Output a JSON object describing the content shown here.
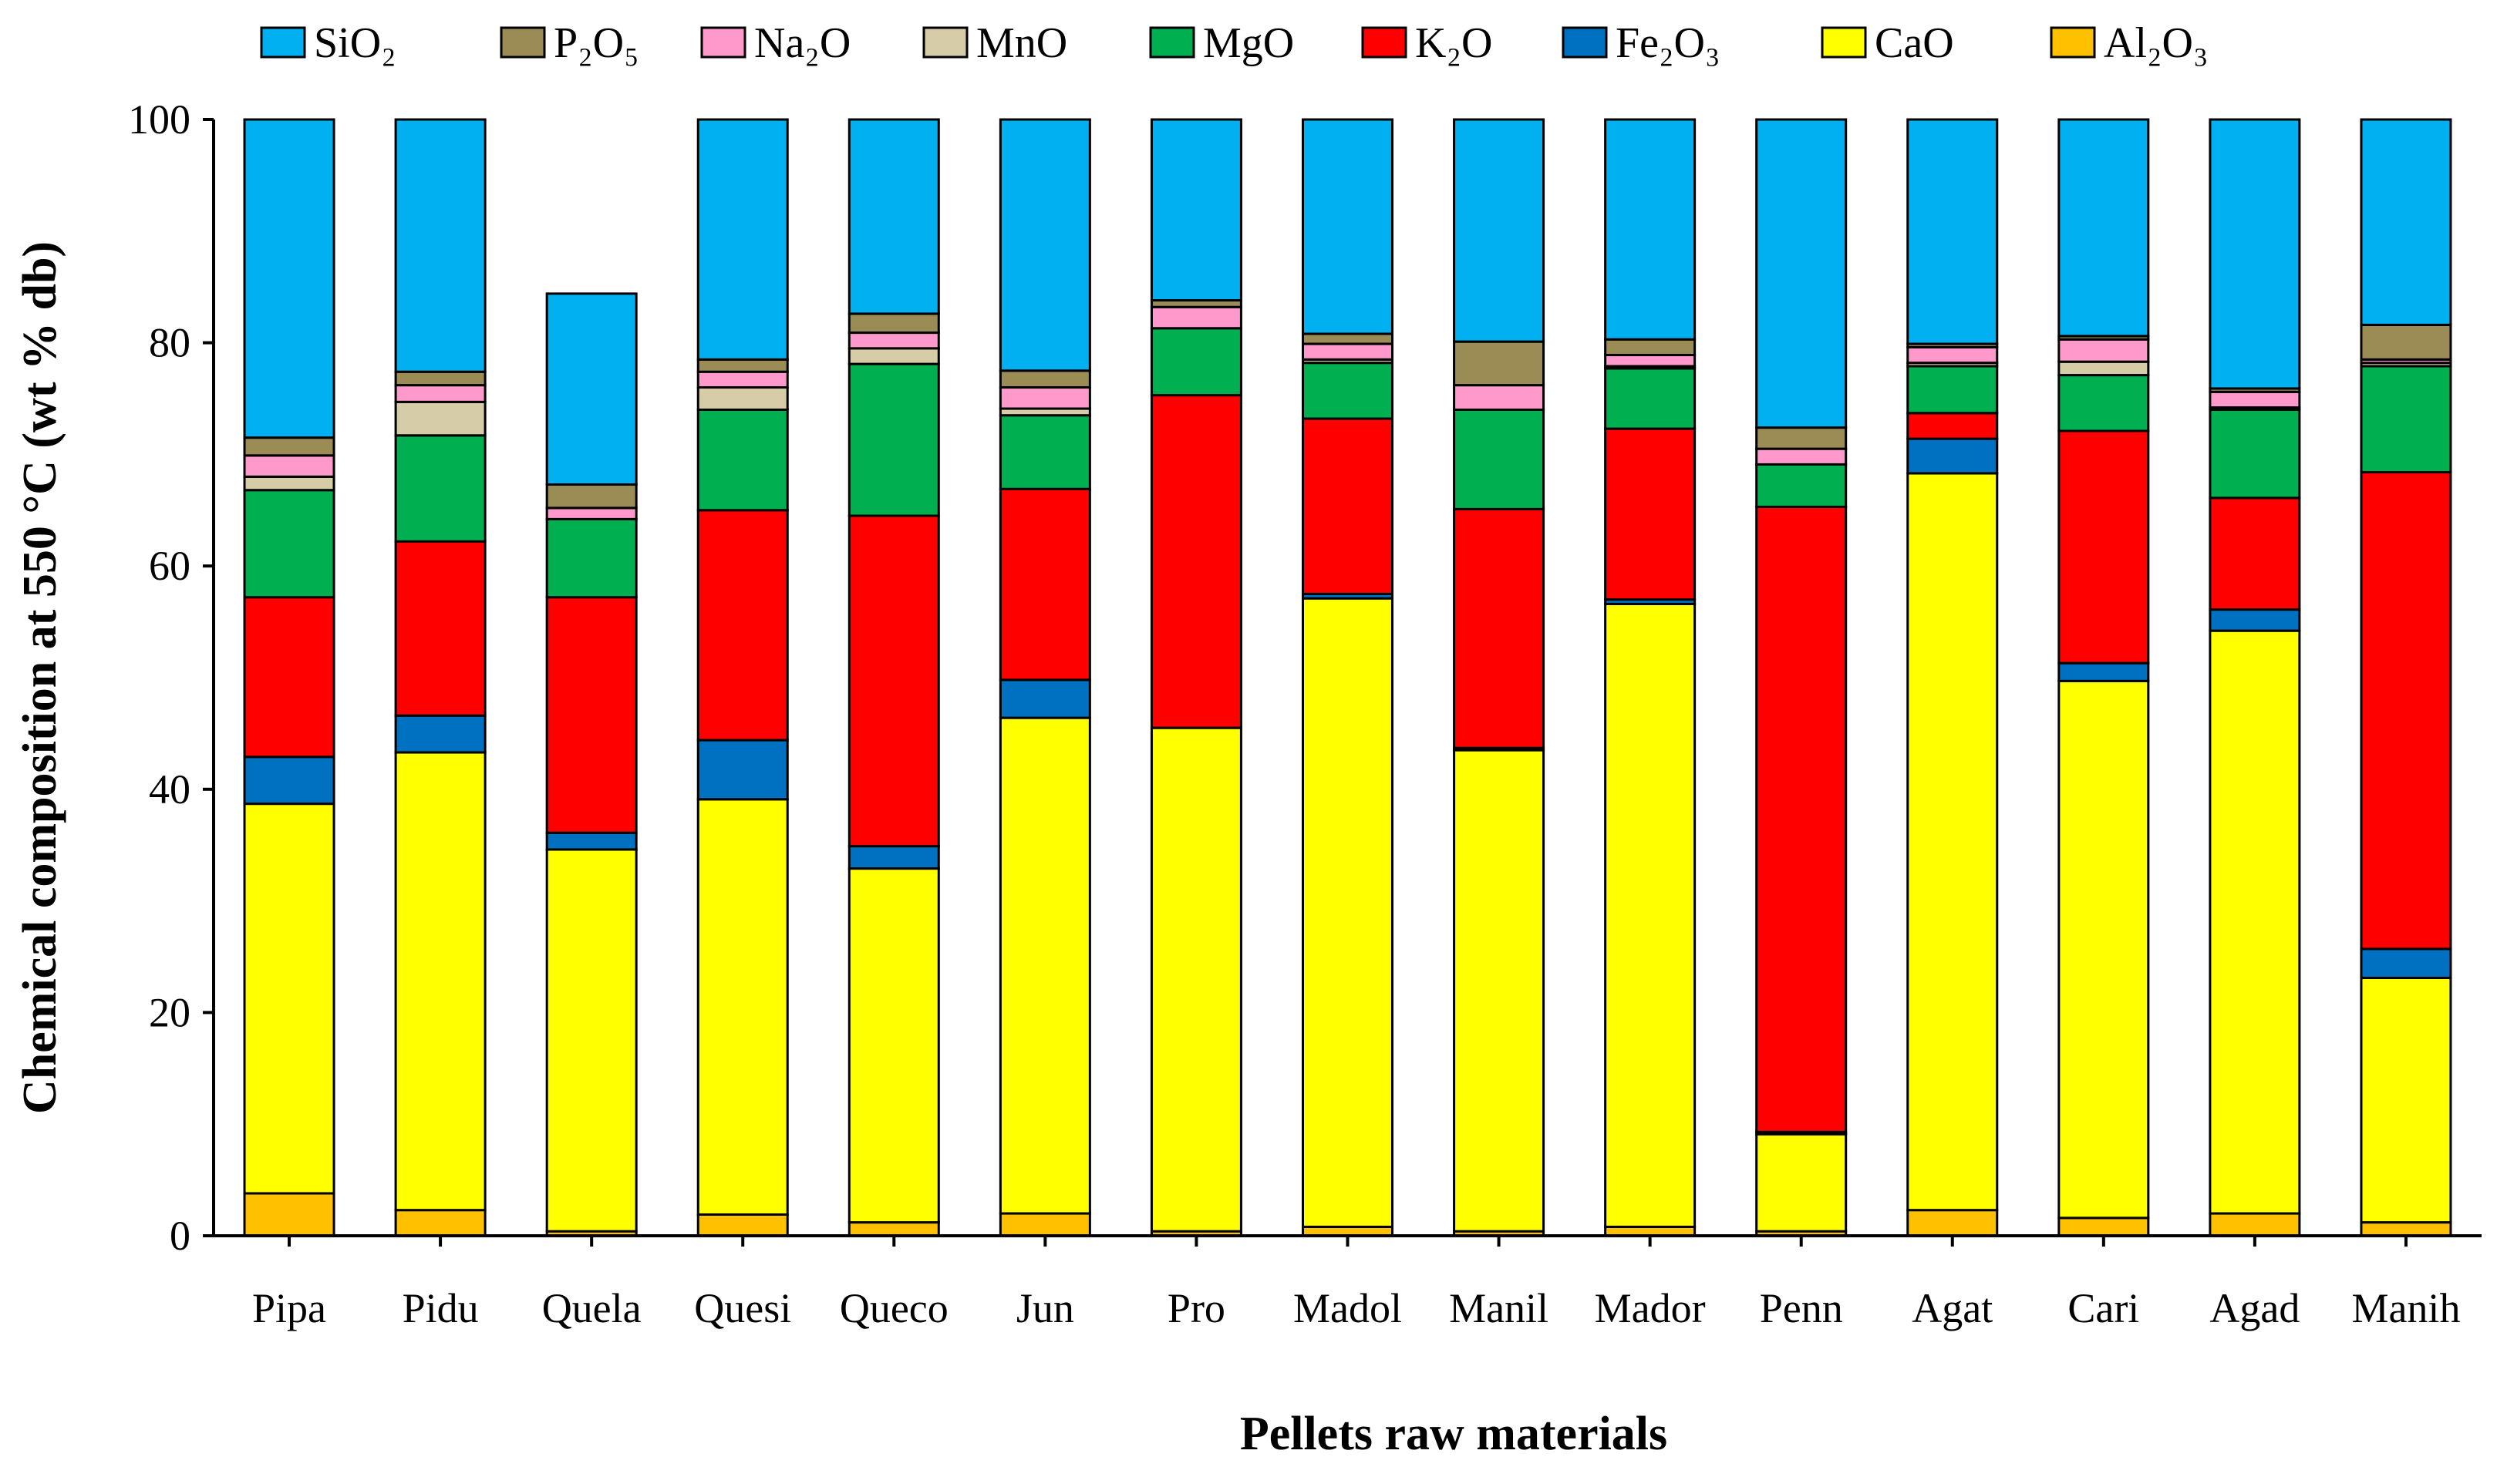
{
  "chart_data": {
    "type": "bar",
    "stacked": true,
    "title": "",
    "xlabel": "Pellets raw materials",
    "ylabel": "Chemical composition at 550 °C (wt % db)",
    "ylim": [
      0,
      100
    ],
    "yticks": [
      "0",
      "20",
      "40",
      "60",
      "80",
      "100"
    ],
    "legend_position": "top",
    "categories": [
      "Pipa",
      "Pidu",
      "Quela",
      "Quesi",
      "Queco",
      "Jun",
      "Pro",
      "Madol",
      "Manil",
      "Mador",
      "Penn",
      "Agat",
      "Cari",
      "Agad",
      "Manih"
    ],
    "series": [
      {
        "name": "Al₂O₃",
        "color": "#FFC000",
        "values": [
          3.8,
          2.3,
          0.4,
          1.9,
          1.2,
          2.0,
          0.4,
          0.8,
          0.4,
          0.8,
          0.4,
          2.3,
          1.6,
          2.0,
          1.2
        ]
      },
      {
        "name": "CaO",
        "color": "#FFFF00",
        "values": [
          34.9,
          41.0,
          34.2,
          37.2,
          31.7,
          44.4,
          45.1,
          56.3,
          43.1,
          55.8,
          8.7,
          66.0,
          48.1,
          52.2,
          21.9
        ]
      },
      {
        "name": "Fe₂O₃",
        "color": "#0070C0",
        "values": [
          4.2,
          3.3,
          1.5,
          5.3,
          2.0,
          3.4,
          0.0,
          0.4,
          0.2,
          0.4,
          0.2,
          3.1,
          1.6,
          1.9,
          2.6
        ]
      },
      {
        "name": "K₂O",
        "color": "#FF0000",
        "values": [
          14.3,
          15.6,
          21.1,
          20.6,
          29.6,
          17.1,
          29.8,
          15.7,
          21.4,
          15.3,
          56.0,
          2.3,
          20.8,
          10.0,
          42.7
        ]
      },
      {
        "name": "MgO",
        "color": "#00B050",
        "values": [
          9.6,
          9.5,
          7.0,
          9.0,
          13.6,
          6.6,
          6.0,
          5.0,
          8.9,
          5.4,
          3.8,
          4.2,
          5.0,
          7.9,
          9.5
        ]
      },
      {
        "name": "MnO",
        "color": "#D6CCA8",
        "values": [
          1.2,
          3.0,
          0.0,
          2.0,
          1.4,
          0.6,
          0.0,
          0.3,
          0.0,
          0.2,
          0.0,
          0.3,
          1.2,
          0.2,
          0.3
        ]
      },
      {
        "name": "Na₂O",
        "color": "#FF99CC",
        "values": [
          1.9,
          1.5,
          1.0,
          1.4,
          1.4,
          1.9,
          1.9,
          1.4,
          2.2,
          1.0,
          1.4,
          1.4,
          2.0,
          1.4,
          0.3
        ]
      },
      {
        "name": "P₂O₅",
        "color": "#9B8B55",
        "values": [
          1.6,
          1.2,
          2.1,
          1.1,
          1.7,
          1.5,
          0.6,
          0.9,
          3.9,
          1.4,
          1.9,
          0.3,
          0.3,
          0.3,
          3.1
        ]
      },
      {
        "name": "SiO₂",
        "color": "#00B0F0",
        "values": [
          28.5,
          22.6,
          17.1,
          21.5,
          17.4,
          22.5,
          16.2,
          19.2,
          19.9,
          19.7,
          27.6,
          20.1,
          19.4,
          24.1,
          18.4
        ]
      }
    ],
    "legend_order": [
      "SiO₂",
      "P₂O₅",
      "Na₂O",
      "MnO",
      "MgO",
      "K₂O",
      "Fe₂O₃",
      "CaO",
      "Al₂O₃"
    ]
  }
}
